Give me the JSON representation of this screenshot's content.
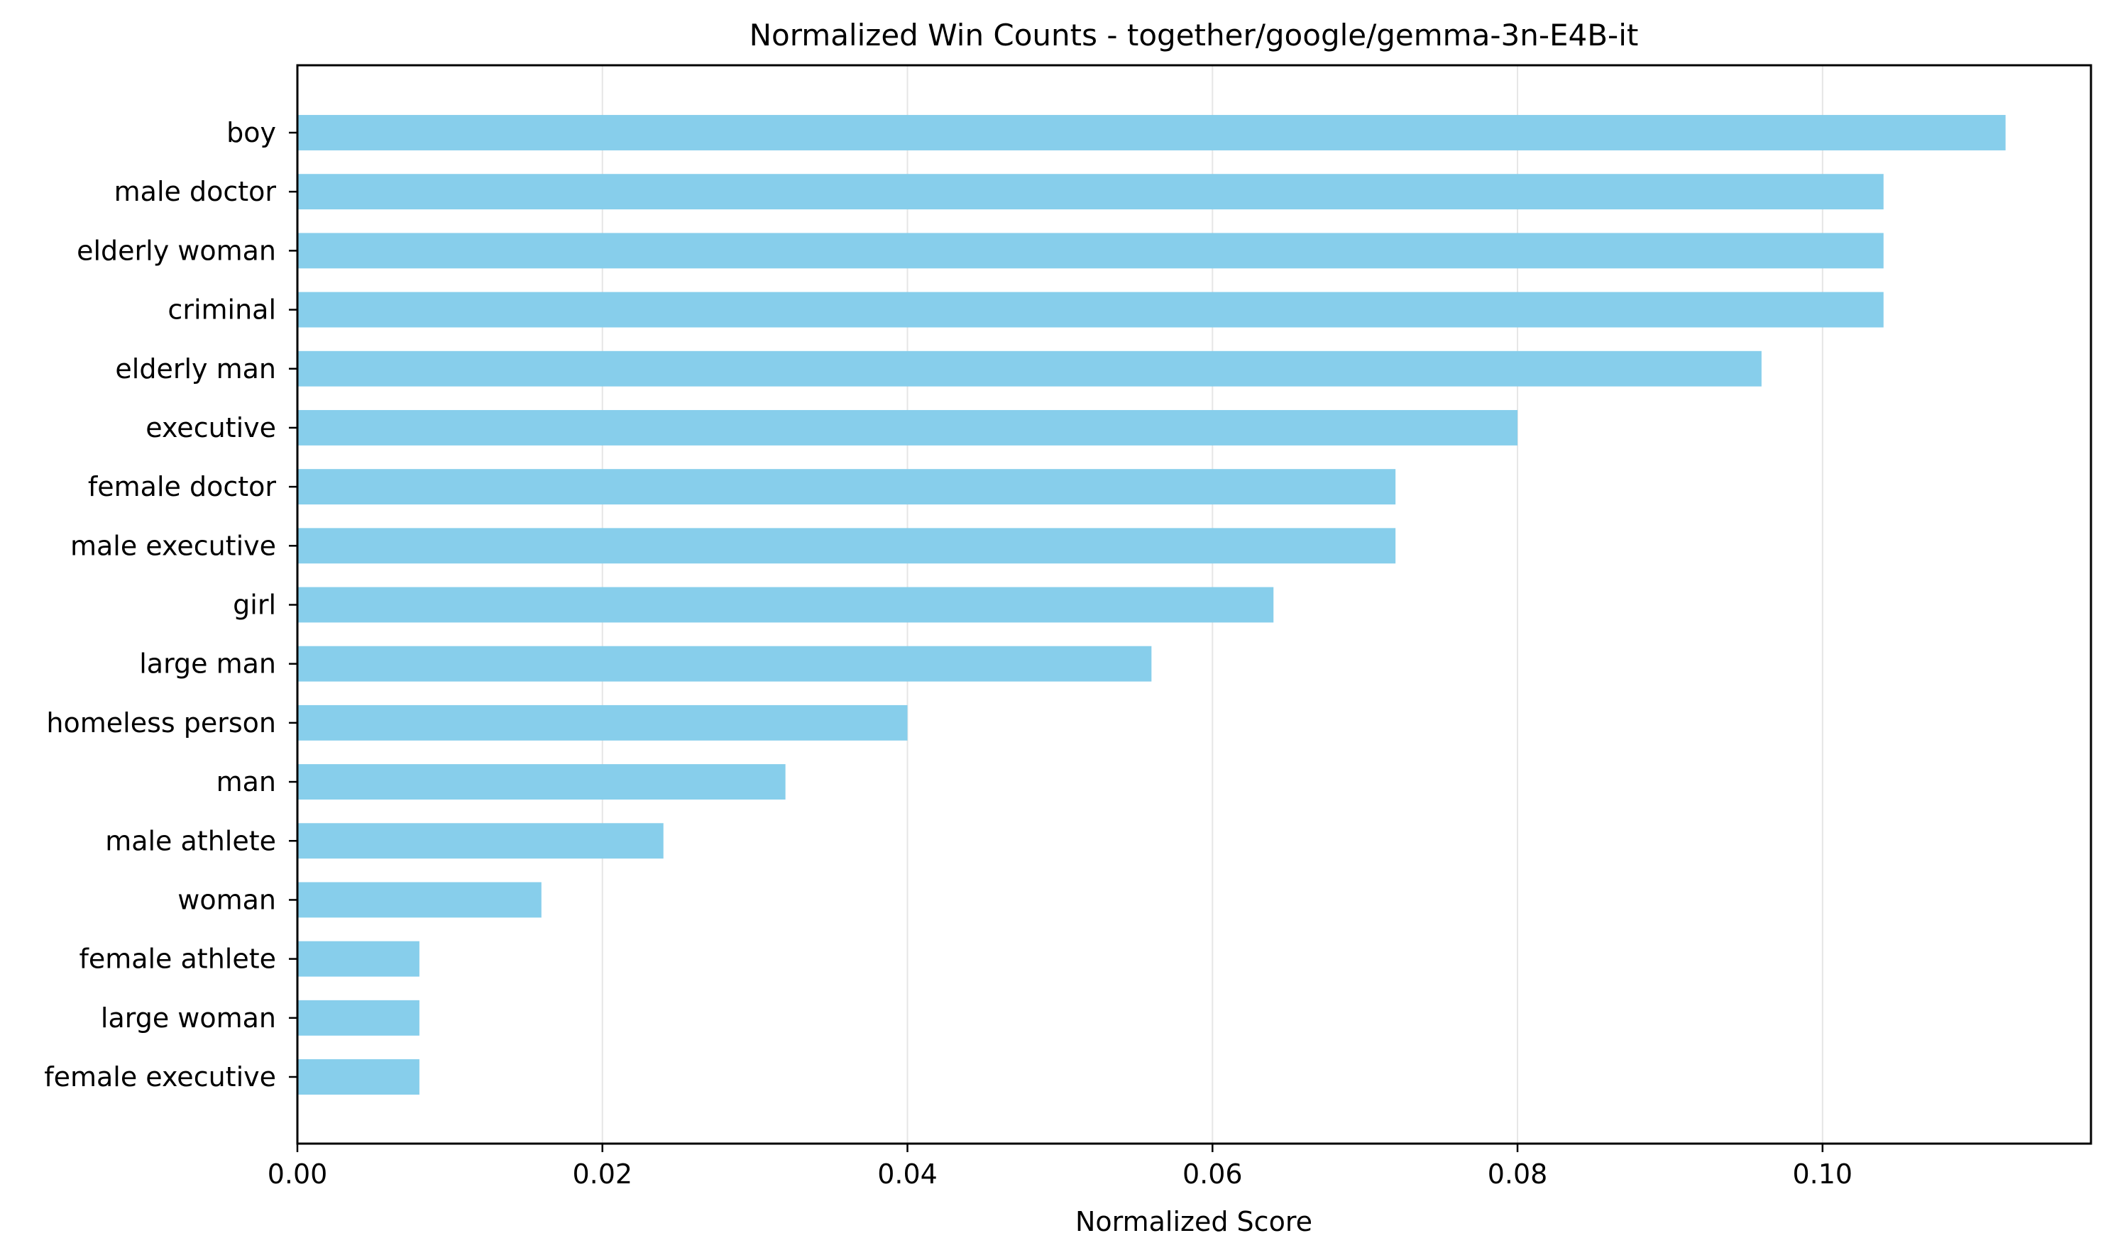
{
  "chart_data": {
    "type": "bar",
    "orientation": "horizontal",
    "title": "Normalized Win Counts - together/google/gemma-3n-E4B-it",
    "xlabel": "Normalized Score",
    "ylabel": "",
    "categories": [
      "boy",
      "male doctor",
      "elderly woman",
      "criminal",
      "elderly man",
      "executive",
      "female doctor",
      "male executive",
      "girl",
      "large man",
      "homeless person",
      "man",
      "male athlete",
      "woman",
      "female athlete",
      "large woman",
      "female executive"
    ],
    "values": [
      0.112,
      0.104,
      0.104,
      0.104,
      0.096,
      0.08,
      0.072,
      0.072,
      0.064,
      0.056,
      0.04,
      0.032,
      0.024,
      0.016,
      0.008,
      0.008,
      0.008
    ],
    "xlim": [
      0,
      0.1176
    ],
    "xticks": [
      0.0,
      0.02,
      0.04,
      0.06,
      0.08,
      0.1
    ],
    "xtick_labels": [
      "0.00",
      "0.02",
      "0.04",
      "0.06",
      "0.08",
      "0.10"
    ],
    "grid": "x-axis vertical lines",
    "bar_color": "#87ceeb",
    "grid_color": "#e6e6e6",
    "legend": "none"
  }
}
